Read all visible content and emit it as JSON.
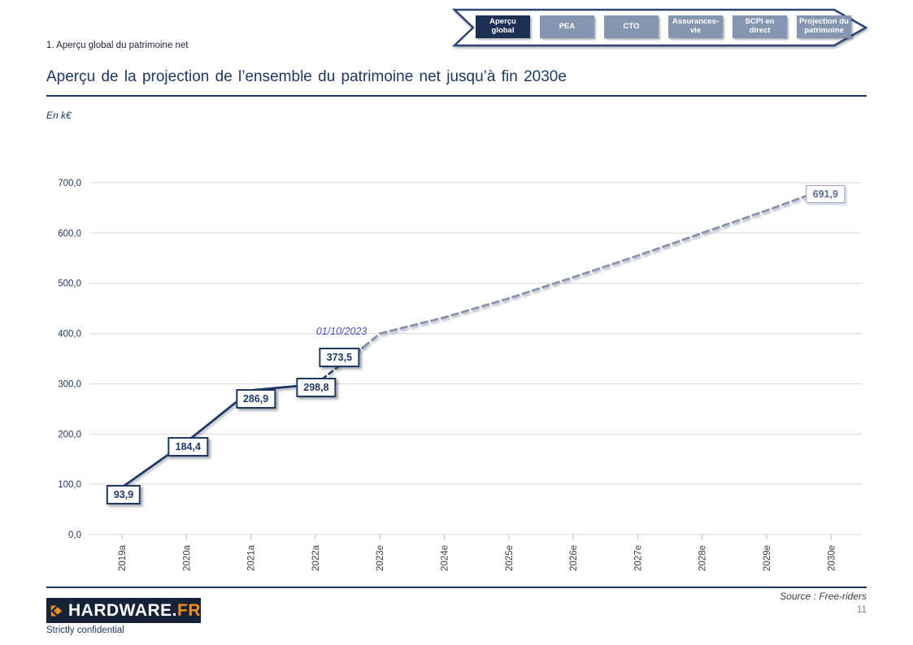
{
  "page": {
    "section_label": "1. Aperçu global du patrimoine net",
    "title": "Aperçu de la projection de l’ensemble du patrimoine net jusqu’à fin 2030e",
    "unit_label": "En k€"
  },
  "nav": {
    "tabs": [
      {
        "label": "Aperçu\nglobal",
        "selected": true
      },
      {
        "label": "PEA",
        "selected": false
      },
      {
        "label": "CTO",
        "selected": false
      },
      {
        "label": "Assurances-\nvie",
        "selected": false
      },
      {
        "label": "SCPI en\ndirect",
        "selected": false
      },
      {
        "label": "Projection du\npatrimoine",
        "selected": false
      }
    ]
  },
  "chart_data": {
    "type": "line",
    "title": "Aperçu de la projection de l’ensemble du patrimoine net jusqu’à fin 2030e",
    "ylabel": "En k€",
    "ylim": [
      0,
      700
    ],
    "y_tick_labels": [
      "0,0",
      "100,0",
      "200,0",
      "300,0",
      "400,0",
      "500,0",
      "600,0",
      "700,0"
    ],
    "categories": [
      "2019a",
      "2020a",
      "2021a",
      "2022a",
      "2023e",
      "2024e",
      "2025e",
      "2026e",
      "2027e",
      "2028e",
      "2029e",
      "2030e"
    ],
    "grid": true,
    "legend": false,
    "series": [
      {
        "name": "actuals",
        "style": "solid",
        "points": [
          {
            "x": 0,
            "y": 93.9,
            "label": "93,9"
          },
          {
            "x": 1,
            "y": 184.4,
            "label": "184,4"
          },
          {
            "x": 2,
            "y": 286.9,
            "label": "286,9"
          },
          {
            "x": 3,
            "y": 298.8,
            "label": "298,8"
          }
        ]
      },
      {
        "name": "year-to-date",
        "style": "dashed-dark",
        "points": [
          {
            "x": 3,
            "y": 298.8
          },
          {
            "x": 3.75,
            "y": 373.5,
            "label": "373,5"
          }
        ]
      },
      {
        "name": "projection",
        "style": "dashed-light",
        "points": [
          {
            "x": 3.75,
            "y": 373.5
          },
          {
            "x": 4,
            "y": 400,
            "estimated": true
          },
          {
            "x": 5,
            "y": 432,
            "estimated": true
          },
          {
            "x": 6,
            "y": 470,
            "estimated": true
          },
          {
            "x": 7,
            "y": 512,
            "estimated": true
          },
          {
            "x": 8,
            "y": 555,
            "estimated": true
          },
          {
            "x": 9,
            "y": 600,
            "estimated": true
          },
          {
            "x": 10,
            "y": 645,
            "estimated": true
          },
          {
            "x": 11,
            "y": 691.9,
            "label": "691,9",
            "label_style": "projection"
          }
        ]
      }
    ],
    "annotation": {
      "text": "01/10/2023",
      "x": 3.75,
      "value": 373.5
    }
  },
  "footer": {
    "logo_text": "HARDWARE.",
    "logo_suffix": "FR",
    "confidential": "Strictly confidential",
    "source": "Source : Free-riders",
    "page_number": "11"
  },
  "colors": {
    "navy": "#1f3864",
    "tab_selected": "#1e2f55",
    "tab_gray": "#8796b0",
    "projection_line": "#8793ad",
    "grid": "#d9d9d9",
    "tick": "#b3b3b3",
    "x_label": "#404040",
    "annotation": "#5050c8",
    "orange": "#f28c1e",
    "logo_bg": "#152238"
  }
}
